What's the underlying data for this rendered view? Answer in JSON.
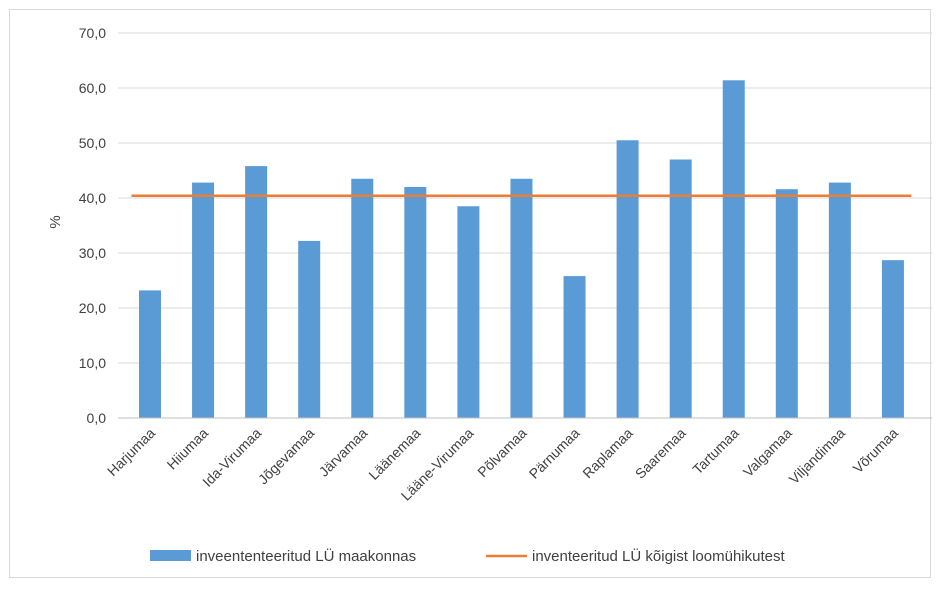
{
  "chart_data": {
    "type": "bar",
    "ylabel": "%",
    "ylim": [
      0,
      70
    ],
    "yticks": [
      "0,0",
      "10,0",
      "20,0",
      "30,0",
      "40,0",
      "50,0",
      "60,0",
      "70,0"
    ],
    "grid": true,
    "legend_position": "bottom",
    "categories": [
      "Harjumaa",
      "Hiiumaa",
      "Ida-Virumaa",
      "Jõgevamaa",
      "Järvamaa",
      "Läänemaa",
      "Lääne-Virumaa",
      "Põlvamaa",
      "Pärnumaa",
      "Raplamaa",
      "Saaremaa",
      "Tartumaa",
      "Valgamaa",
      "Viljandimaa",
      "Võrumaa"
    ],
    "series": [
      {
        "name": "inveententeeritud LÜ maakonnas",
        "type": "bar",
        "color": "#5b9bd5",
        "values": [
          23.2,
          42.8,
          45.8,
          32.2,
          43.5,
          42.0,
          38.5,
          43.5,
          25.8,
          50.5,
          47.0,
          61.4,
          41.6,
          42.8,
          28.7
        ]
      },
      {
        "name": "inventeeritud LÜ kõigist loomühikutest",
        "type": "line",
        "color": "#ed7d31",
        "value": 40.4
      }
    ]
  }
}
